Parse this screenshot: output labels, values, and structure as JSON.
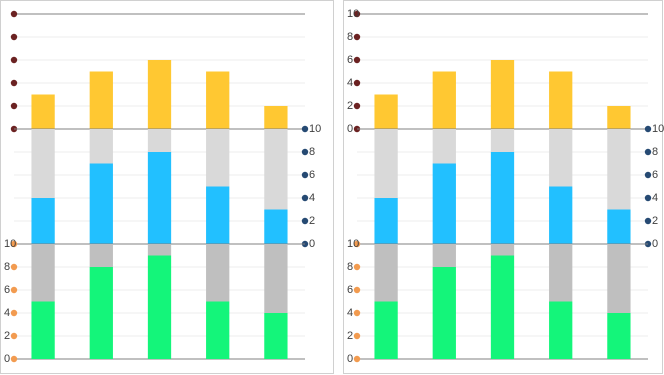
{
  "chart_data": [
    {
      "type": "bar",
      "stacked": true,
      "categories": [
        null,
        null,
        null,
        null,
        null
      ],
      "series": [
        {
          "color": "#ffc832",
          "values": [
            3,
            5,
            6,
            5,
            2
          ]
        }
      ],
      "ylim": [
        0,
        10
      ],
      "yticks": [
        0,
        2,
        4,
        6,
        8,
        10
      ],
      "tick_labels": false,
      "tick_side": "left",
      "tick_color": "#6b2222",
      "grid": true
    },
    {
      "type": "bar",
      "stacked": true,
      "categories": [
        null,
        null,
        null,
        null,
        null
      ],
      "series": [
        {
          "color": "#22c0ff",
          "values": [
            4,
            7,
            8,
            5,
            3
          ]
        },
        {
          "color": "#d9d9d9",
          "values": [
            6,
            3,
            2,
            5,
            7
          ]
        }
      ],
      "ylim": [
        0,
        10
      ],
      "yticks": [
        0,
        2,
        4,
        6,
        8,
        10
      ],
      "tick_labels": true,
      "tick_side": "right",
      "tick_color": "#264a73",
      "grid": true
    },
    {
      "type": "bar",
      "stacked": true,
      "categories": [
        null,
        null,
        null,
        null,
        null
      ],
      "series": [
        {
          "color": "#14f57a",
          "values": [
            5,
            8,
            9,
            5,
            4
          ]
        },
        {
          "color": "#bfbfbf",
          "values": [
            5,
            2,
            1,
            5,
            6
          ]
        }
      ],
      "ylim": [
        0,
        10
      ],
      "yticks": [
        0,
        2,
        4,
        6,
        8,
        10
      ],
      "tick_labels": true,
      "tick_side": "left",
      "tick_color": "#f29b50",
      "grid": true
    },
    {
      "type": "bar",
      "stacked": true,
      "categories": [
        null,
        null,
        null,
        null,
        null
      ],
      "series": [
        {
          "color": "#ffc832",
          "values": [
            3,
            5,
            6,
            5,
            2
          ]
        }
      ],
      "ylim": [
        0,
        10
      ],
      "yticks": [
        0,
        2,
        4,
        6,
        8,
        10
      ],
      "tick_labels": true,
      "tick_side": "left",
      "tick_color": "#6b2222",
      "grid": true
    },
    {
      "type": "bar",
      "stacked": true,
      "categories": [
        null,
        null,
        null,
        null,
        null
      ],
      "series": [
        {
          "color": "#22c0ff",
          "values": [
            4,
            7,
            8,
            5,
            3
          ]
        },
        {
          "color": "#d9d9d9",
          "values": [
            6,
            3,
            2,
            5,
            7
          ]
        }
      ],
      "ylim": [
        0,
        10
      ],
      "yticks": [
        0,
        2,
        4,
        6,
        8,
        10
      ],
      "tick_labels": true,
      "tick_side": "right",
      "tick_color": "#264a73",
      "grid": true
    },
    {
      "type": "bar",
      "stacked": true,
      "categories": [
        null,
        null,
        null,
        null,
        null
      ],
      "series": [
        {
          "color": "#14f57a",
          "values": [
            5,
            8,
            9,
            5,
            4
          ]
        },
        {
          "color": "#bfbfbf",
          "values": [
            5,
            2,
            1,
            5,
            6
          ]
        }
      ],
      "ylim": [
        0,
        10
      ],
      "yticks": [
        0,
        2,
        4,
        6,
        8,
        10
      ],
      "tick_labels": true,
      "tick_side": "left",
      "tick_color": "#f29b50",
      "grid": true
    }
  ]
}
